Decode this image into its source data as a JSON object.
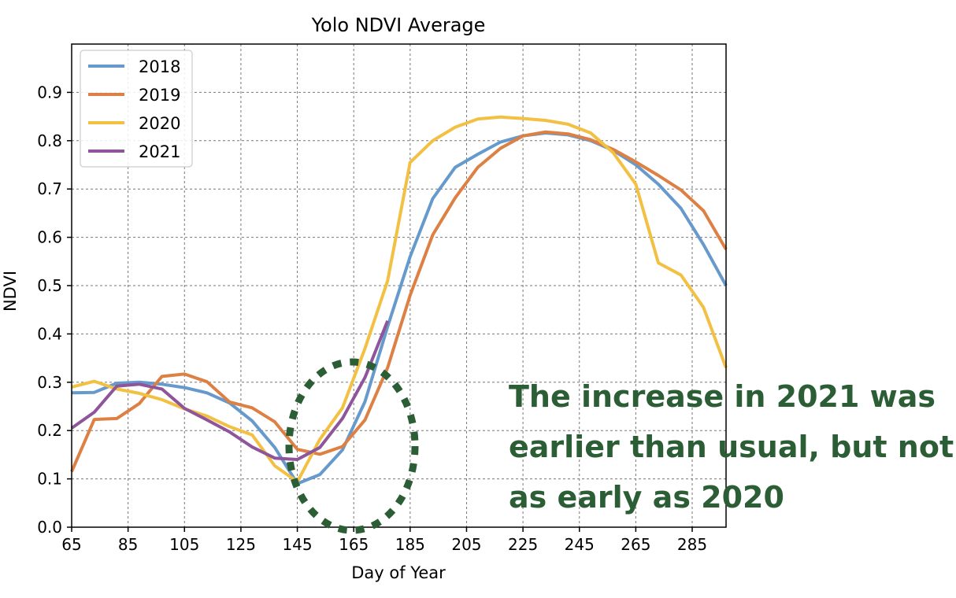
{
  "chart_data": {
    "type": "line",
    "title": "Yolo NDVI Average",
    "xlabel": "Day of Year",
    "ylabel": "NDVI",
    "xlim": [
      65,
      297
    ],
    "ylim": [
      0.0,
      0.9
    ],
    "x_ticks": [
      "65",
      "85",
      "105",
      "125",
      "145",
      "165",
      "185",
      "205",
      "225",
      "245",
      "265",
      "285"
    ],
    "y_ticks": [
      "0.0",
      "0.1",
      "0.2",
      "0.3",
      "0.4",
      "0.5",
      "0.6",
      "0.7",
      "0.8",
      "0.9"
    ],
    "grid": true,
    "legend_position": "top-left",
    "series": [
      {
        "name": "2018",
        "color": "#6699cc",
        "x": [
          65,
          73,
          81,
          89,
          97,
          105,
          113,
          121,
          129,
          137,
          145,
          153,
          161,
          169,
          177,
          185,
          193,
          201,
          209,
          217,
          225,
          233,
          241,
          249,
          257,
          265,
          273,
          281,
          289,
          297
        ],
        "y": [
          0.278,
          0.279,
          0.298,
          0.3,
          0.296,
          0.289,
          0.278,
          0.257,
          0.22,
          0.165,
          0.09,
          0.109,
          0.16,
          0.26,
          0.415,
          0.56,
          0.68,
          0.745,
          0.772,
          0.797,
          0.81,
          0.816,
          0.812,
          0.8,
          0.78,
          0.75,
          0.71,
          0.66,
          0.585,
          0.5
        ]
      },
      {
        "name": "2019",
        "color": "#dd8044",
        "x": [
          65,
          73,
          81,
          89,
          97,
          105,
          113,
          121,
          129,
          137,
          145,
          153,
          161,
          169,
          177,
          185,
          193,
          201,
          209,
          217,
          225,
          233,
          241,
          249,
          257,
          265,
          273,
          281,
          289,
          297
        ],
        "y": [
          0.115,
          0.223,
          0.225,
          0.256,
          0.312,
          0.317,
          0.301,
          0.259,
          0.247,
          0.218,
          0.161,
          0.151,
          0.167,
          0.222,
          0.33,
          0.48,
          0.605,
          0.682,
          0.745,
          0.784,
          0.81,
          0.818,
          0.814,
          0.802,
          0.782,
          0.756,
          0.728,
          0.698,
          0.655,
          0.575
        ]
      },
      {
        "name": "2020",
        "color": "#f2c042",
        "x": [
          65,
          73,
          81,
          89,
          97,
          105,
          113,
          121,
          129,
          137,
          145,
          153,
          161,
          169,
          177,
          185,
          193,
          201,
          209,
          217,
          225,
          233,
          241,
          249,
          257,
          265,
          273,
          281,
          289,
          297
        ],
        "y": [
          0.29,
          0.302,
          0.286,
          0.277,
          0.264,
          0.245,
          0.23,
          0.208,
          0.191,
          0.127,
          0.094,
          0.182,
          0.247,
          0.37,
          0.51,
          0.755,
          0.8,
          0.828,
          0.845,
          0.849,
          0.846,
          0.842,
          0.834,
          0.816,
          0.775,
          0.71,
          0.547,
          0.522,
          0.455,
          0.33
        ]
      },
      {
        "name": "2021",
        "color": "#8e559b",
        "x": [
          65,
          73,
          81,
          89,
          97,
          105,
          113,
          121,
          129,
          137,
          145,
          153,
          161,
          169,
          177
        ],
        "y": [
          0.205,
          0.238,
          0.292,
          0.296,
          0.286,
          0.246,
          0.222,
          0.197,
          0.166,
          0.143,
          0.14,
          0.165,
          0.225,
          0.31,
          0.427
        ]
      }
    ]
  },
  "annotation": {
    "lines": [
      "The increase in 2021 was",
      "earlier than usual, but not",
      "as early as 2020"
    ],
    "color": "#2b5e35"
  },
  "highlight": {
    "color": "#2b5e35",
    "label": "dashed-ellipse"
  }
}
